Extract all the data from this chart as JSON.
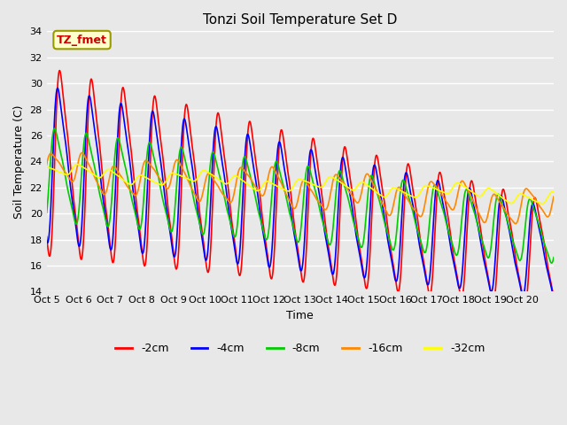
{
  "title": "Tonzi Soil Temperature Set D",
  "xlabel": "Time",
  "ylabel": "Soil Temperature (C)",
  "ylim": [
    14,
    34
  ],
  "yticks": [
    14,
    16,
    18,
    20,
    22,
    24,
    26,
    28,
    30,
    32,
    34
  ],
  "annotation_text": "TZ_fmet",
  "background_color": "#e8e8e8",
  "line_colors": [
    "#ff0000",
    "#0000ff",
    "#00cc00",
    "#ff8800",
    "#ffff00"
  ],
  "line_labels": [
    "-2cm",
    "-4cm",
    "-8cm",
    "-16cm",
    "-32cm"
  ],
  "n_days": 16,
  "x_tick_labels": [
    "Oct 5",
    "Oct 6",
    "Oct 7",
    "Oct 8",
    "Oct 9",
    "Oct 10",
    "Oct 11",
    "Oct 12",
    "Oct 13",
    "Oct 14",
    "Oct 15",
    "Oct 16",
    "Oct 17",
    "Oct 18",
    "Oct 19",
    "Oct 20"
  ],
  "grid_color": "#ffffff",
  "title_fontsize": 11,
  "label_fontsize": 9,
  "tick_fontsize": 8,
  "figwidth": 6.4,
  "figheight": 4.8,
  "dpi": 100
}
